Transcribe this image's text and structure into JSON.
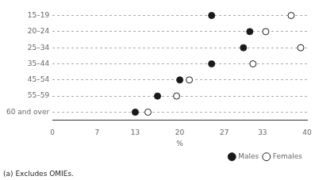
{
  "chart_data": {
    "type": "dot",
    "orientation": "horizontal",
    "categories": [
      "15–19",
      "20–24",
      "25–34",
      "35–44",
      "45–54",
      "55–59",
      "60 and over"
    ],
    "series": [
      {
        "name": "Males",
        "color": "#1a1a1a",
        "marker": "circle",
        "values": [
          25.0,
          31.0,
          30.0,
          25.0,
          20.0,
          16.5,
          13.0
        ]
      },
      {
        "name": "Females",
        "color": "#ffffff",
        "marker": "circle",
        "values": [
          37.5,
          33.5,
          39.0,
          31.5,
          21.5,
          19.5,
          15.0
        ]
      }
    ],
    "xlabel": "%",
    "xlim": [
      0,
      40
    ],
    "xticks": [
      0,
      7,
      13,
      20,
      27,
      33,
      40
    ],
    "grid": "y",
    "legend": "lower right",
    "annotations": [
      "(a) Excludes OMIEs."
    ]
  }
}
